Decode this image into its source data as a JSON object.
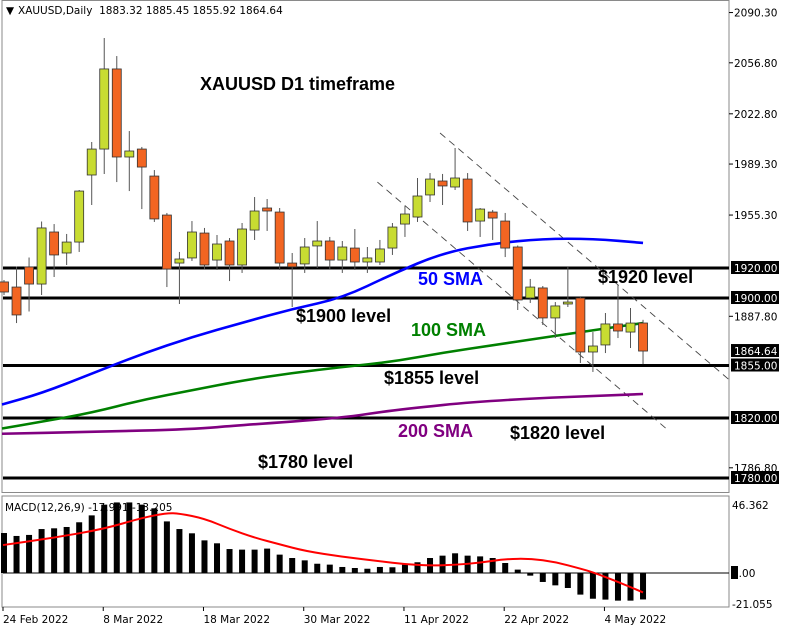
{
  "header": {
    "arrow": "▼",
    "text": "XAUUSD,Daily  1883.32 1885.45 1855.92 1864.64"
  },
  "macd_header": "MACD(12,26,9) -17.991 -13.205",
  "colors": {
    "bull": "#c8dc32",
    "bear": "#f26522",
    "sma50": "#0000ff",
    "sma100": "#008000",
    "sma200": "#800080",
    "signal": "#ff0000",
    "level": "#000000"
  },
  "annotations": {
    "title": "XAUUSD D1 timeframe",
    "sma50": "50 SMA",
    "sma100": "100 SMA",
    "sma200": "200 SMA",
    "l1920": "$1920 level",
    "l1900": "$1900 level",
    "l1855": "$1855 level",
    "l1820": "$1820 level",
    "l1780": "$1780 level"
  },
  "chart_data": [
    {
      "type": "candlestick",
      "symbol": "XAUUSD",
      "timeframe": "Daily",
      "ylim": [
        1775,
        2095
      ],
      "x_tick_labels": [
        {
          "index": 0,
          "label": "24 Feb 2022"
        },
        {
          "index": 8,
          "label": "8 Mar 2022"
        },
        {
          "index": 16,
          "label": "18 Mar 2022"
        },
        {
          "index": 24,
          "label": "30 Mar 2022"
        },
        {
          "index": 32,
          "label": "11 Apr 2022"
        },
        {
          "index": 40,
          "label": "22 Apr 2022"
        },
        {
          "index": 48,
          "label": "4 May 2022"
        }
      ],
      "y_tick_labels": [
        "2090.30",
        "2056.80",
        "2022.80",
        "1989.30",
        "1955.30",
        "1887.80",
        "1786.80"
      ],
      "highlighted_labels": [
        "1920.00",
        "1900.00",
        "1864.64",
        "1855.00",
        "1820.00",
        "1780.00"
      ],
      "ohlc": [
        [
          1910.7,
          1912,
          1902,
          1904
        ],
        [
          1907.3,
          1921,
          1883.3,
          1888.7
        ],
        [
          1920.7,
          1927,
          1891,
          1909.3
        ],
        [
          1909.3,
          1951,
          1902,
          1946.7
        ],
        [
          1944,
          1949.3,
          1914,
          1928.7
        ],
        [
          1930,
          1942.7,
          1922,
          1937.3
        ],
        [
          1937.3,
          1972,
          1930.7,
          1971.3
        ],
        [
          1982,
          2004,
          1962,
          1999.3
        ],
        [
          1999.3,
          2073.3,
          1982.7,
          2052.7
        ],
        [
          2052.7,
          2061.3,
          1977.3,
          1994
        ],
        [
          1994,
          2011.3,
          1971.3,
          1998
        ],
        [
          1999.3,
          2000.7,
          1959.3,
          1987.3
        ],
        [
          1981.3,
          1985.3,
          1950.7,
          1952.7
        ],
        [
          1955.3,
          1956.7,
          1907.3,
          1919.3
        ],
        [
          1923.3,
          1930.7,
          1896,
          1926
        ],
        [
          1926.7,
          1951.3,
          1924.7,
          1944
        ],
        [
          1943.3,
          1946.7,
          1919.3,
          1922
        ],
        [
          1925.3,
          1942,
          1918.7,
          1936
        ],
        [
          1938,
          1940,
          1911.3,
          1922
        ],
        [
          1922,
          1950,
          1916.7,
          1946
        ],
        [
          1945.3,
          1967.3,
          1938.7,
          1958
        ],
        [
          1960,
          1966,
          1944.7,
          1958
        ],
        [
          1957.3,
          1960,
          1918.7,
          1923.3
        ],
        [
          1923.3,
          1930,
          1894,
          1920.7
        ],
        [
          1922.7,
          1940,
          1916.7,
          1934
        ],
        [
          1934.7,
          1951.3,
          1920,
          1938
        ],
        [
          1938,
          1940.7,
          1919.3,
          1925.3
        ],
        [
          1925.3,
          1938,
          1916.7,
          1934
        ],
        [
          1933.3,
          1946,
          1918.7,
          1924
        ],
        [
          1924,
          1934,
          1916.7,
          1926.7
        ],
        [
          1924,
          1938.7,
          1922,
          1932.7
        ],
        [
          1933.3,
          1950,
          1928.7,
          1947.3
        ],
        [
          1949.3,
          1961.3,
          1940.7,
          1956
        ],
        [
          1954,
          1980,
          1950.7,
          1968
        ],
        [
          1968.7,
          1983.3,
          1964,
          1979.3
        ],
        [
          1978,
          1982.7,
          1962,
          1974.7
        ],
        [
          1974,
          2000,
          1972,
          1980
        ],
        [
          1979.3,
          1983.3,
          1944.7,
          1950.7
        ],
        [
          1951.3,
          1960,
          1940.7,
          1959.3
        ],
        [
          1957.3,
          1958.7,
          1938.7,
          1953.3
        ],
        [
          1951.3,
          1956.7,
          1927.3,
          1933.3
        ],
        [
          1934,
          1935,
          1892,
          1898.7
        ],
        [
          1900,
          1912.7,
          1896.7,
          1907.3
        ],
        [
          1906.7,
          1908,
          1882,
          1886.7
        ],
        [
          1886.7,
          1897.3,
          1873.3,
          1894.7
        ],
        [
          1896,
          1920.7,
          1894,
          1897.3
        ],
        [
          1900,
          1900.7,
          1856.7,
          1864
        ],
        [
          1864,
          1877.3,
          1850.7,
          1868
        ],
        [
          1868.7,
          1890,
          1863.3,
          1882.7
        ],
        [
          1882.7,
          1908.7,
          1873.3,
          1878
        ],
        [
          1877.3,
          1893.3,
          1866.7,
          1883.3
        ],
        [
          1883.32,
          1885.45,
          1855.92,
          1864.64
        ]
      ],
      "horizontal_levels": [
        1920,
        1900,
        1855,
        1820,
        1780
      ],
      "trend_lines": [
        {
          "from": {
            "index": 34.8,
            "price": 2010
          },
          "to": {
            "index": 57.9,
            "price": 1845.3
          }
        },
        {
          "from": {
            "index": 29.8,
            "price": 1977.3
          },
          "to": {
            "index": 52.8,
            "price": 1813.3
          }
        }
      ],
      "series": [
        {
          "name": "50 SMA",
          "points": [
            [
              0,
              1829
            ],
            [
              3,
              1836.5
            ],
            [
              7,
              1849.5
            ],
            [
              11,
              1862.7
            ],
            [
              15,
              1874
            ],
            [
              19,
              1883.5
            ],
            [
              23,
              1892.7
            ],
            [
              27,
              1900
            ],
            [
              31,
              1916
            ],
            [
              35,
              1930
            ],
            [
              39,
              1936.3
            ],
            [
              43,
              1939.5
            ],
            [
              47,
              1939.5
            ],
            [
              51,
              1936.7
            ]
          ]
        },
        {
          "name": "100 SMA",
          "points": [
            [
              0,
              1813
            ],
            [
              3,
              1817.5
            ],
            [
              7,
              1823.5
            ],
            [
              11,
              1832
            ],
            [
              15,
              1838.5
            ],
            [
              19,
              1845
            ],
            [
              23,
              1850
            ],
            [
              27,
              1854
            ],
            [
              31,
              1857.5
            ],
            [
              35,
              1863.5
            ],
            [
              39,
              1868.5
            ],
            [
              43,
              1873.5
            ],
            [
              47,
              1878.5
            ],
            [
              51,
              1883.3
            ]
          ]
        },
        {
          "name": "200 SMA",
          "points": [
            [
              0,
              1809.5
            ],
            [
              7,
              1810.7
            ],
            [
              15,
              1812.5
            ],
            [
              19,
              1815.3
            ],
            [
              27,
              1820
            ],
            [
              31,
              1825.3
            ],
            [
              39,
              1832
            ],
            [
              51,
              1836
            ]
          ]
        }
      ]
    },
    {
      "type": "bar",
      "title": "MACD(12,26,9) -17.991 -13.205",
      "ylim": [
        -21.055,
        46.362
      ],
      "y_tick_labels": [
        "46.362",
        "-21.055"
      ],
      "highlighted_labels": [
        "0.00"
      ],
      "histogram": [
        27.2,
        25.2,
        25.9,
        29.9,
        30.4,
        31.3,
        34.5,
        39.2,
        46.5,
        48,
        48,
        46.5,
        44,
        35.1,
        29.9,
        27,
        22.2,
        20.2,
        16.3,
        15.9,
        15.9,
        16.6,
        12.5,
        10.2,
        8.6,
        6.3,
        5.7,
        4.1,
        3.4,
        2.9,
        4.1,
        3.9,
        5.7,
        7.3,
        10.2,
        11.8,
        13.4,
        11.8,
        11.3,
        10.2,
        6.8,
        2.3,
        -1.8,
        -6.1,
        -8.4,
        -10.2,
        -14.7,
        -17.5,
        -18.1,
        -18.8,
        -18.8,
        -17.991
      ],
      "signal": [
        [
          0,
          19
        ],
        [
          4,
          24
        ],
        [
          8,
          30
        ],
        [
          11,
          37.5
        ],
        [
          13,
          40.8
        ],
        [
          14,
          40.5
        ],
        [
          16,
          37
        ],
        [
          18,
          30
        ],
        [
          20,
          24
        ],
        [
          22,
          19.5
        ],
        [
          24,
          15
        ],
        [
          27,
          11
        ],
        [
          30,
          8
        ],
        [
          32,
          6
        ],
        [
          34,
          5
        ],
        [
          36,
          5.5
        ],
        [
          38,
          7
        ],
        [
          40,
          9.5
        ],
        [
          42,
          9.8
        ],
        [
          44,
          7.5
        ],
        [
          46,
          3
        ],
        [
          47,
          0.5
        ],
        [
          49,
          -6
        ],
        [
          51,
          -13.205
        ]
      ]
    }
  ]
}
